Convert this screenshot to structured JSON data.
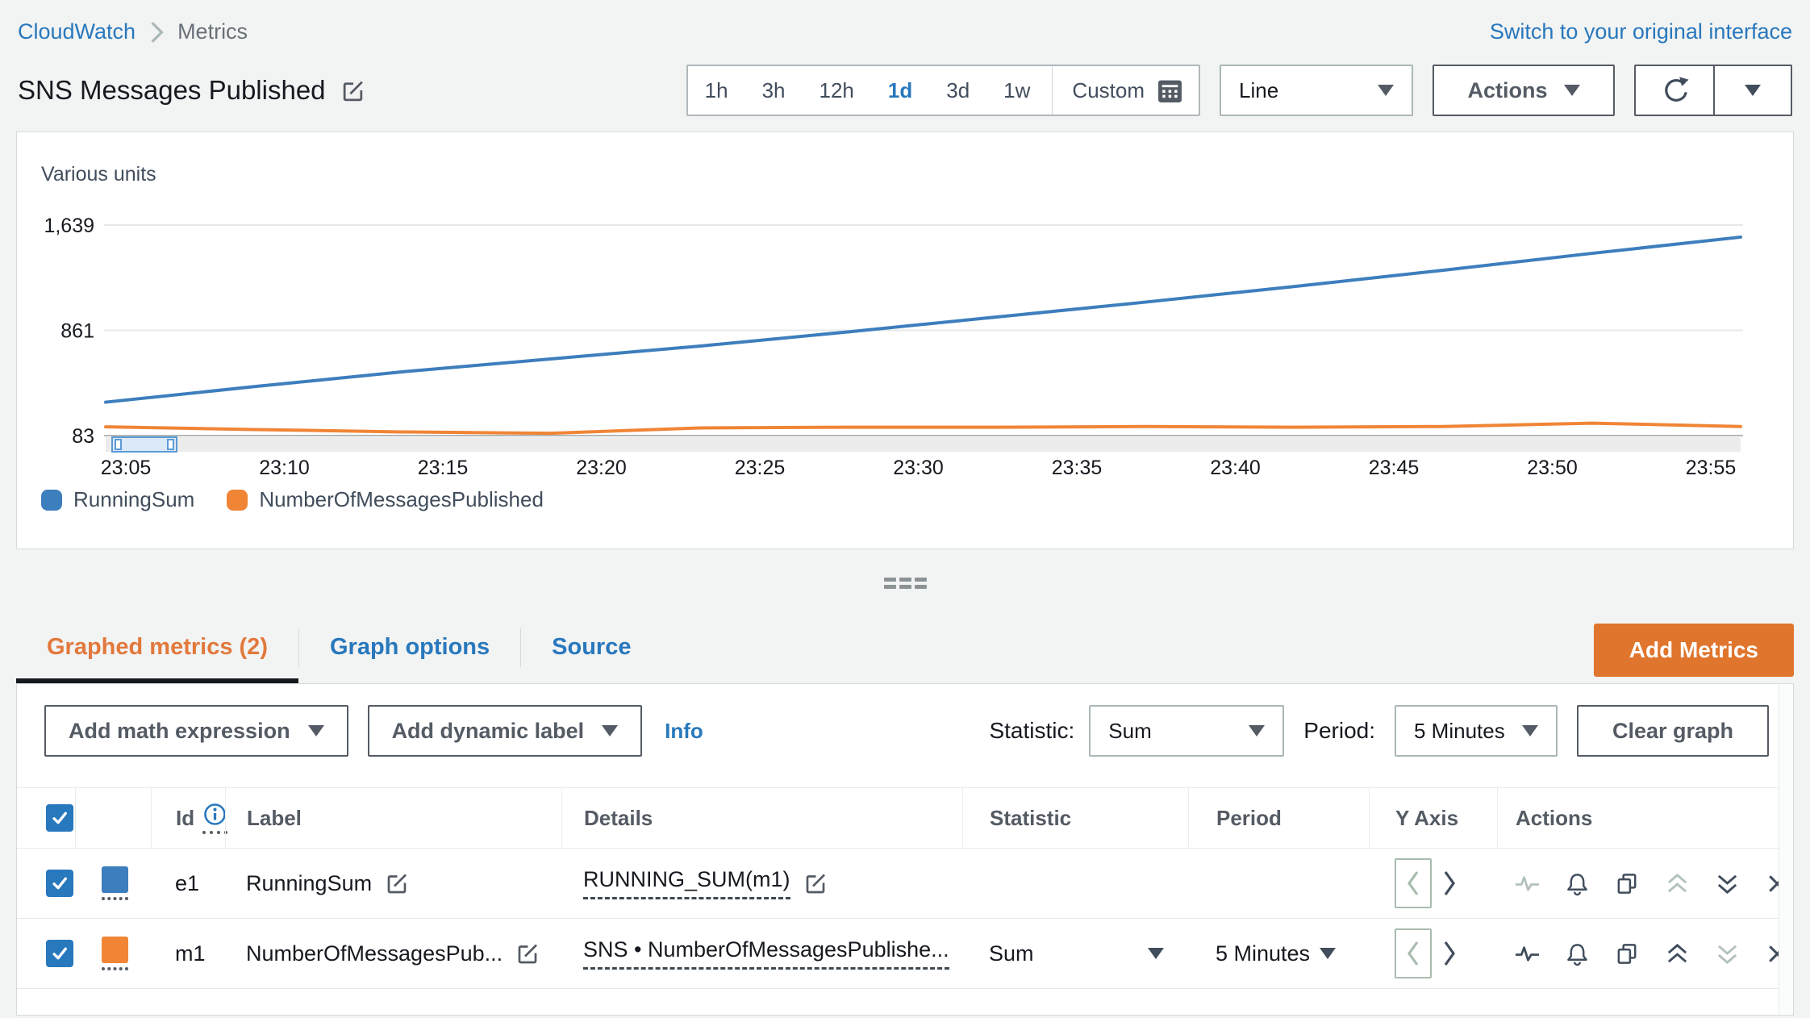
{
  "breadcrumb": {
    "items": [
      "CloudWatch",
      "Metrics"
    ]
  },
  "header": {
    "switch_link": "Switch to your original interface",
    "title": "SNS Messages Published",
    "time_ranges": [
      "1h",
      "3h",
      "12h",
      "1d",
      "3d",
      "1w"
    ],
    "time_range_selected": "1d",
    "custom_label": "Custom",
    "chart_type_value": "Line",
    "actions_label": "Actions"
  },
  "chart_data": {
    "type": "line",
    "title": "SNS Messages Published",
    "unit_label": "Various units",
    "ylim": [
      83,
      1639
    ],
    "y_ticks": [
      1639,
      861,
      83
    ],
    "y_tick_labels": [
      "1,639",
      "861",
      "83"
    ],
    "x_tick_labels": [
      "23:05",
      "23:10",
      "23:15",
      "23:20",
      "23:25",
      "23:30",
      "23:35",
      "23:40",
      "23:45",
      "23:50",
      "23:55"
    ],
    "grid": true,
    "legend_position": "bottom",
    "series": [
      {
        "name": "RunningSum",
        "color": "#3d7ebd",
        "values": [
          330,
          445,
          555,
          650,
          745,
          850,
          960,
          1070,
          1185,
          1305,
          1430,
          1550
        ]
      },
      {
        "name": "NumberOfMessagesPublished",
        "color": "#f08536",
        "values": [
          148,
          128,
          110,
          100,
          140,
          145,
          145,
          150,
          145,
          150,
          175,
          150
        ]
      }
    ]
  },
  "panel": {
    "tabs": [
      {
        "label": "Graphed metrics (2)",
        "active": true
      },
      {
        "label": "Graph options",
        "active": false
      },
      {
        "label": "Source",
        "active": false
      }
    ],
    "add_metrics_label": "Add Metrics"
  },
  "toolbar": {
    "add_math_label": "Add math expression",
    "add_dynamic_label": "Add dynamic label",
    "info_label": "Info",
    "statistic_label": "Statistic:",
    "statistic_value": "Sum",
    "period_label": "Period:",
    "period_value": "5 Minutes",
    "clear_label": "Clear graph"
  },
  "table": {
    "headers": {
      "id": "Id",
      "label": "Label",
      "details": "Details",
      "statistic": "Statistic",
      "period": "Period",
      "y_axis": "Y Axis",
      "actions": "Actions"
    },
    "rows": [
      {
        "checked": true,
        "color": "#3d7ebd",
        "id": "e1",
        "label": "RunningSum",
        "details": "RUNNING_SUM(m1)",
        "statistic": "",
        "period": "",
        "disabled_actions": [
          "pulse",
          "move-up"
        ]
      },
      {
        "checked": true,
        "color": "#f08536",
        "id": "m1",
        "label": "NumberOfMessagesPub...",
        "details": "SNS • NumberOfMessagesPublishe...",
        "statistic": "Sum",
        "period": "5 Minutes",
        "disabled_actions": [
          "move-down"
        ]
      }
    ]
  },
  "colors": {
    "link_blue": "#2878bd",
    "accent_orange": "#e0752d",
    "tab_orange": "#e2793c",
    "series_blue": "#3d7ebd",
    "series_orange": "#f08536",
    "icon_dark": "#414d5c",
    "icon_disabled": "#b4c1bd"
  }
}
